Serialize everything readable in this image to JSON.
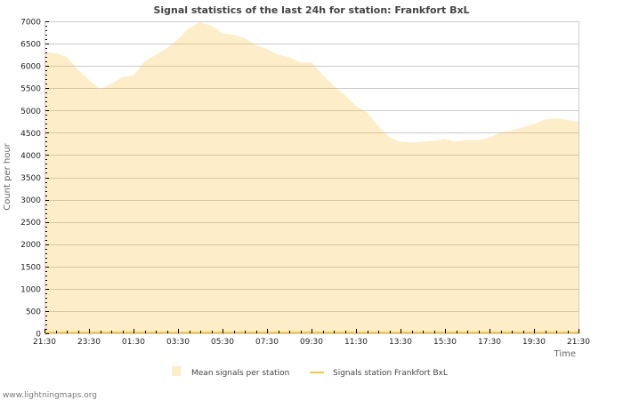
{
  "chart_data": {
    "type": "area",
    "title": "Signal statistics of the last 24h for station: Frankfort BxL",
    "xlabel": "Time",
    "ylabel": "Count per hour",
    "ylim": [
      0,
      7000
    ],
    "y_ticks": [
      0,
      500,
      1000,
      1500,
      2000,
      2500,
      3000,
      3500,
      4000,
      4500,
      5000,
      5500,
      6000,
      6500,
      7000
    ],
    "x_tick_labels": [
      "21:30",
      "23:30",
      "01:30",
      "03:30",
      "05:30",
      "07:30",
      "09:30",
      "11:30",
      "13:30",
      "15:30",
      "17:30",
      "19:30",
      "21:30"
    ],
    "grid": true,
    "legend_position": "bottom",
    "x": [
      "21:30",
      "22:00",
      "22:30",
      "23:00",
      "23:30",
      "00:00",
      "00:30",
      "01:00",
      "01:30",
      "02:00",
      "02:30",
      "03:00",
      "03:30",
      "04:00",
      "04:30",
      "05:00",
      "05:30",
      "06:00",
      "06:30",
      "07:00",
      "07:30",
      "08:00",
      "08:30",
      "09:00",
      "09:30",
      "10:00",
      "10:30",
      "11:00",
      "11:30",
      "12:00",
      "12:30",
      "13:00",
      "13:30",
      "14:00",
      "14:30",
      "15:00",
      "15:30",
      "16:00",
      "16:30",
      "17:00",
      "17:30",
      "18:00",
      "18:30",
      "19:00",
      "19:30",
      "20:00",
      "20:30",
      "21:00",
      "21:30"
    ],
    "series": [
      {
        "name": "Mean signals per station",
        "kind": "area",
        "color": "#fdedc8",
        "values": [
          6320,
          6290,
          6200,
          5920,
          5680,
          5480,
          5600,
          5750,
          5780,
          6100,
          6250,
          6400,
          6600,
          6850,
          6980,
          6900,
          6730,
          6700,
          6620,
          6470,
          6380,
          6250,
          6200,
          6070,
          6080,
          5800,
          5550,
          5350,
          5100,
          4950,
          4650,
          4400,
          4300,
          4280,
          4300,
          4320,
          4360,
          4300,
          4340,
          4330,
          4400,
          4500,
          4550,
          4620,
          4700,
          4800,
          4820,
          4790,
          4750
        ]
      },
      {
        "name": "Signals station Frankfort BxL",
        "kind": "line",
        "color": "#f5c842",
        "values": [
          0,
          0,
          0,
          0,
          0,
          0,
          0,
          0,
          0,
          0,
          0,
          0,
          0,
          0,
          0,
          0,
          0,
          0,
          0,
          0,
          0,
          0,
          0,
          0,
          0,
          0,
          0,
          0,
          0,
          0,
          0,
          0,
          0,
          0,
          0,
          0,
          0,
          0,
          0,
          0,
          0,
          0,
          0,
          0,
          0,
          0,
          0,
          0,
          0
        ]
      }
    ]
  },
  "legend": {
    "items": [
      {
        "label": "Mean signals per station"
      },
      {
        "label": "Signals station Frankfort BxL"
      }
    ]
  },
  "footer": {
    "credit": "www.lightningmaps.org"
  },
  "colors": {
    "area_fill": "#fdedc8",
    "line": "#f5c842",
    "grid": "#cccccc",
    "grid_on_area": "#d8c8a0",
    "frame": "#cccccc"
  }
}
